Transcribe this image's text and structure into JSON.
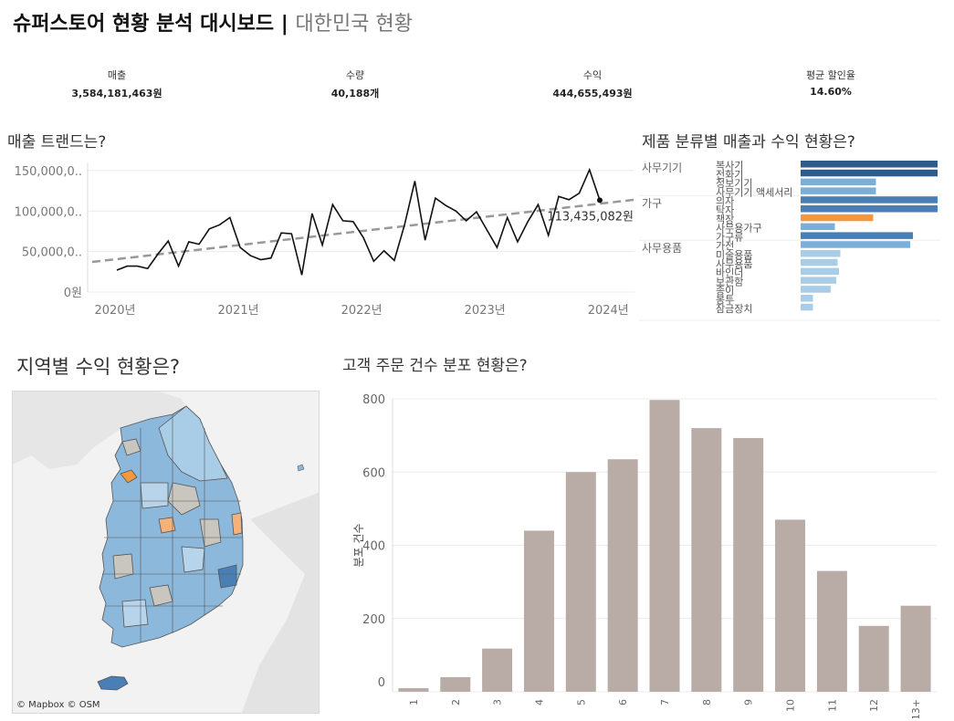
{
  "header": {
    "title": "슈퍼스토어 현황 분석 대시보드",
    "separator": "|",
    "subtitle": "대한민국 현황"
  },
  "kpis": [
    {
      "label": "매출",
      "value": "3,584,181,463원"
    },
    {
      "label": "수량",
      "value": "40,188개"
    },
    {
      "label": "수익",
      "value": "444,655,493원"
    },
    {
      "label": "평균 할인율",
      "value": "14.60%"
    }
  ],
  "trend": {
    "title": "매출 트랜드는?",
    "annotation": "113,435,082원"
  },
  "category": {
    "title": "제품 분류별 매출과 수익 현황은?"
  },
  "map": {
    "title": "지역별 수익 현황은?",
    "credit": "© Mapbox © OSM"
  },
  "orders": {
    "title": "고객 주문 건수 분포 현황은?"
  },
  "colors": {
    "line": "#111111",
    "trendline": "#999999",
    "bar_gray": "#b9aca7",
    "bar_dark_blue": "#2b5c8a",
    "bar_blue": "#4a7fb5",
    "bar_mid_blue": "#7bafd8",
    "bar_light_blue": "#a9cde6",
    "bar_orange": "#f5983c",
    "map_blue": "#8cb8dc",
    "map_light": "#b7d4ea",
    "map_gray": "#c9c6c0",
    "map_orange": "#f3b27a"
  },
  "chart_data": [
    {
      "type": "line",
      "name": "sales-trend",
      "x_ticks": [
        "2020년",
        "2021년",
        "2022년",
        "2023년",
        "2024년"
      ],
      "y_ticks": [
        "0원",
        "50,000,0..",
        "100,000,0..",
        "150,000,0.."
      ],
      "ylim": [
        0,
        160000000
      ],
      "trendline": true,
      "grid": true,
      "x": [
        "2020-01",
        "2020-02",
        "2020-03",
        "2020-04",
        "2020-05",
        "2020-06",
        "2020-07",
        "2020-08",
        "2020-09",
        "2020-10",
        "2020-11",
        "2020-12",
        "2021-01",
        "2021-02",
        "2021-03",
        "2021-04",
        "2021-05",
        "2021-06",
        "2021-07",
        "2021-08",
        "2021-09",
        "2021-10",
        "2021-11",
        "2021-12",
        "2022-01",
        "2022-02",
        "2022-03",
        "2022-04",
        "2022-05",
        "2022-06",
        "2022-07",
        "2022-08",
        "2022-09",
        "2022-10",
        "2022-11",
        "2022-12",
        "2023-01",
        "2023-02",
        "2023-03",
        "2023-04",
        "2023-05",
        "2023-06",
        "2023-07",
        "2023-08",
        "2023-09",
        "2023-10",
        "2023-11",
        "2023-12"
      ],
      "values": [
        27000000,
        32000000,
        32000000,
        29000000,
        47000000,
        63000000,
        32000000,
        62000000,
        59000000,
        78000000,
        83000000,
        92000000,
        55000000,
        45000000,
        40000000,
        42000000,
        73000000,
        72000000,
        21000000,
        97000000,
        58000000,
        108000000,
        88000000,
        87000000,
        67000000,
        38000000,
        51000000,
        39000000,
        83000000,
        137000000,
        64000000,
        116000000,
        107000000,
        100000000,
        88000000,
        99000000,
        77000000,
        55000000,
        92000000,
        62000000,
        87000000,
        108000000,
        70000000,
        118000000,
        114000000,
        122000000,
        151000000,
        113435082
      ]
    },
    {
      "type": "bar",
      "name": "category-sales",
      "orientation": "horizontal",
      "groups": [
        "사무기기",
        "가구",
        "사무용품"
      ],
      "group_sizes": [
        4,
        5,
        8
      ],
      "subcategory_labels": [
        "복사기",
        "전화기",
        "정보기기",
        "사무기기 액세서리",
        "의자",
        "탁자",
        "책장",
        "사무용가구",
        "가구류",
        "가전",
        "미술용품",
        "사무용품",
        "바인더",
        "보관함",
        "종이",
        "봉투",
        "잠금장치"
      ],
      "values": [
        100,
        100,
        55,
        55,
        100,
        100,
        53,
        25,
        82,
        80,
        29,
        27,
        28,
        26,
        22,
        9,
        9
      ],
      "color_keys": [
        "bar_dark_blue",
        "bar_dark_blue",
        "bar_mid_blue",
        "bar_mid_blue",
        "bar_blue",
        "bar_blue",
        "bar_orange",
        "bar_mid_blue",
        "bar_blue",
        "bar_mid_blue",
        "bar_light_blue",
        "bar_light_blue",
        "bar_light_blue",
        "bar_light_blue",
        "bar_light_blue",
        "bar_light_blue",
        "bar_light_blue"
      ]
    },
    {
      "type": "bar",
      "name": "order-count-distribution",
      "categories": [
        "1",
        "2",
        "3",
        "4",
        "5",
        "6",
        "7",
        "8",
        "9",
        "10",
        "11",
        "12",
        "13+"
      ],
      "values": [
        10,
        40,
        118,
        440,
        600,
        635,
        797,
        720,
        693,
        470,
        330,
        180,
        235
      ],
      "ylabel": "분포 건수",
      "y_ticks": [
        0,
        200,
        400,
        600,
        800
      ],
      "ylim": [
        0,
        800
      ]
    }
  ]
}
